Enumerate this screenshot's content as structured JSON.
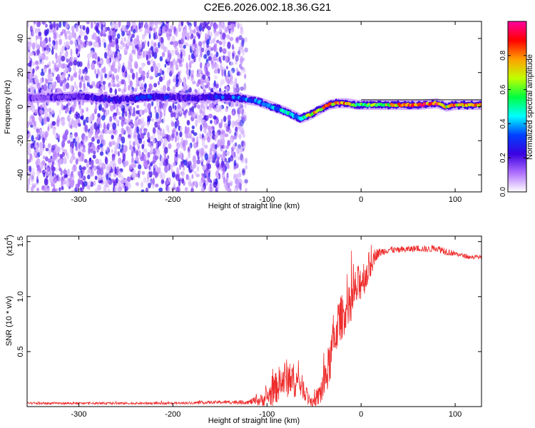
{
  "title": "C2E6.2026.002.18.36.G21",
  "colors": {
    "signal_red": "#ee2c2c",
    "scatter_purple": "#8a2be2",
    "track_dark": "#111111"
  },
  "chart_data": [
    {
      "type": "heatmap",
      "name": "spectrogram",
      "xlabel": "Height of straight line (km)",
      "ylabel": "Frequency (Hz)",
      "xlim": [
        -355,
        128
      ],
      "ylim": [
        -50,
        50
      ],
      "xticks": [
        -300,
        -200,
        -100,
        0,
        100
      ],
      "xtick_labels": [
        "-300",
        "-200",
        "-100",
        "0",
        "100"
      ],
      "yticks": [
        -40,
        -20,
        0,
        20,
        40
      ],
      "ytick_labels": [
        "-40",
        "-20",
        "0",
        "20",
        "40"
      ],
      "noise_region_x": [
        -355,
        -122
      ],
      "track_x": [
        -355,
        -300,
        -260,
        -220,
        -180,
        -150,
        -130,
        -110,
        -95,
        -80,
        -65,
        -55,
        -45,
        -35,
        -25,
        -15,
        -5,
        0,
        20,
        60,
        80,
        90,
        100,
        128
      ],
      "track_freq": [
        5,
        6,
        4,
        6,
        5,
        6,
        5,
        3,
        0,
        -3,
        -7,
        -5,
        -2,
        1,
        2,
        2,
        1,
        1,
        1,
        1,
        2,
        0,
        1,
        1
      ],
      "track_amplitude": [
        0.15,
        0.2,
        0.25,
        0.3,
        0.2,
        0.3,
        0.35,
        0.35,
        0.4,
        0.45,
        0.4,
        0.7,
        0.75,
        0.8,
        0.85,
        0.8,
        0.5,
        0.55,
        0.6,
        0.9,
        0.85,
        0.7,
        0.8,
        0.75
      ],
      "colorbar": {
        "label": "Normalized spectral amplitude",
        "range": [
          0,
          1
        ],
        "ticks": [
          0.0,
          0.2,
          0.4,
          0.6,
          0.8
        ],
        "tick_labels": [
          "0.0",
          "0.2",
          "0.4",
          "0.6",
          "0.8"
        ],
        "stops": [
          "#ffffff",
          "#b070ff",
          "#3a00e0",
          "#0040ff",
          "#00ffff",
          "#00ff40",
          "#c0ff00",
          "#ffa000",
          "#ff0000",
          "#ff00a0"
        ]
      }
    },
    {
      "type": "line",
      "name": "snr",
      "xlabel": "Height of straight line (km)",
      "ylabel": "SNR (10 * v/v)",
      "multiplier_label": "(x10",
      "multiplier_exp": "4",
      "xlim": [
        -355,
        128
      ],
      "ylim": [
        0,
        1.55
      ],
      "xticks": [
        -300,
        -200,
        -100,
        0,
        100
      ],
      "xtick_labels": [
        "-300",
        "-200",
        "-100",
        "0",
        "100"
      ],
      "yticks": [
        0.5,
        1.0,
        1.5
      ],
      "ytick_labels": [
        "0.5",
        "1.0",
        "1.5"
      ],
      "x": [
        -355,
        -300,
        -250,
        -200,
        -150,
        -120,
        -105,
        -95,
        -88,
        -80,
        -72,
        -65,
        -58,
        -52,
        -48,
        -42,
        -36,
        -30,
        -25,
        -18,
        -12,
        -6,
        0,
        5,
        10,
        15,
        20,
        30,
        40,
        50,
        60,
        70,
        80,
        88,
        95,
        105,
        115,
        128
      ],
      "y": [
        0.03,
        0.03,
        0.03,
        0.03,
        0.04,
        0.04,
        0.06,
        0.12,
        0.2,
        0.26,
        0.24,
        0.21,
        0.12,
        0.03,
        0.05,
        0.15,
        0.3,
        0.55,
        0.75,
        0.85,
        0.9,
        1.05,
        1.15,
        1.2,
        1.3,
        1.38,
        1.4,
        1.43,
        1.42,
        1.43,
        1.44,
        1.43,
        1.44,
        1.42,
        1.4,
        1.38,
        1.36,
        1.36
      ],
      "spread": [
        0.01,
        0.01,
        0.01,
        0.01,
        0.015,
        0.02,
        0.06,
        0.12,
        0.16,
        0.18,
        0.16,
        0.12,
        0.08,
        0.04,
        0.06,
        0.15,
        0.2,
        0.22,
        0.22,
        0.2,
        0.2,
        0.2,
        0.18,
        0.16,
        0.14,
        0.06,
        0.04,
        0.03,
        0.03,
        0.03,
        0.03,
        0.03,
        0.03,
        0.04,
        0.03,
        0.02,
        0.02,
        0.02
      ]
    }
  ]
}
